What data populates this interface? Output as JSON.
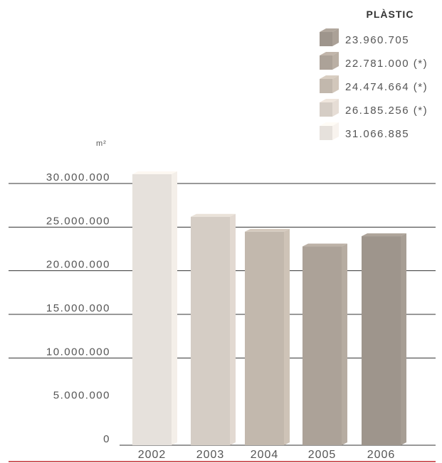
{
  "chart_data": {
    "type": "bar",
    "title": "PLÀSTIC",
    "ylabel": "m²",
    "categories": [
      "2002",
      "2003",
      "2004",
      "2005",
      "2006"
    ],
    "values": [
      31066885,
      26185256,
      24474664,
      22781000,
      23960705
    ],
    "legend": [
      {
        "label": "23.960.705",
        "color": "#9e958c"
      },
      {
        "label": "22.781.000 (*)",
        "color": "#aca298"
      },
      {
        "label": "24.474.664 (*)",
        "color": "#c2b8ad"
      },
      {
        "label": "26.185.256 (*)",
        "color": "#d5cdc5"
      },
      {
        "label": "31.066.885",
        "color": "#e6e1dc"
      }
    ],
    "bar_colors": [
      "#e6e1dc",
      "#d5cdc5",
      "#c2b8ad",
      "#aca298",
      "#9e958c"
    ],
    "yticks": [
      "0",
      "5.000.000",
      "10.000.000",
      "15.000.000",
      "20.000.000",
      "25.000.000",
      "30.000.000"
    ],
    "ylim": [
      0,
      30000000
    ],
    "grid": true,
    "legend_position": "top-right",
    "baseline_color": "#c0272d"
  }
}
